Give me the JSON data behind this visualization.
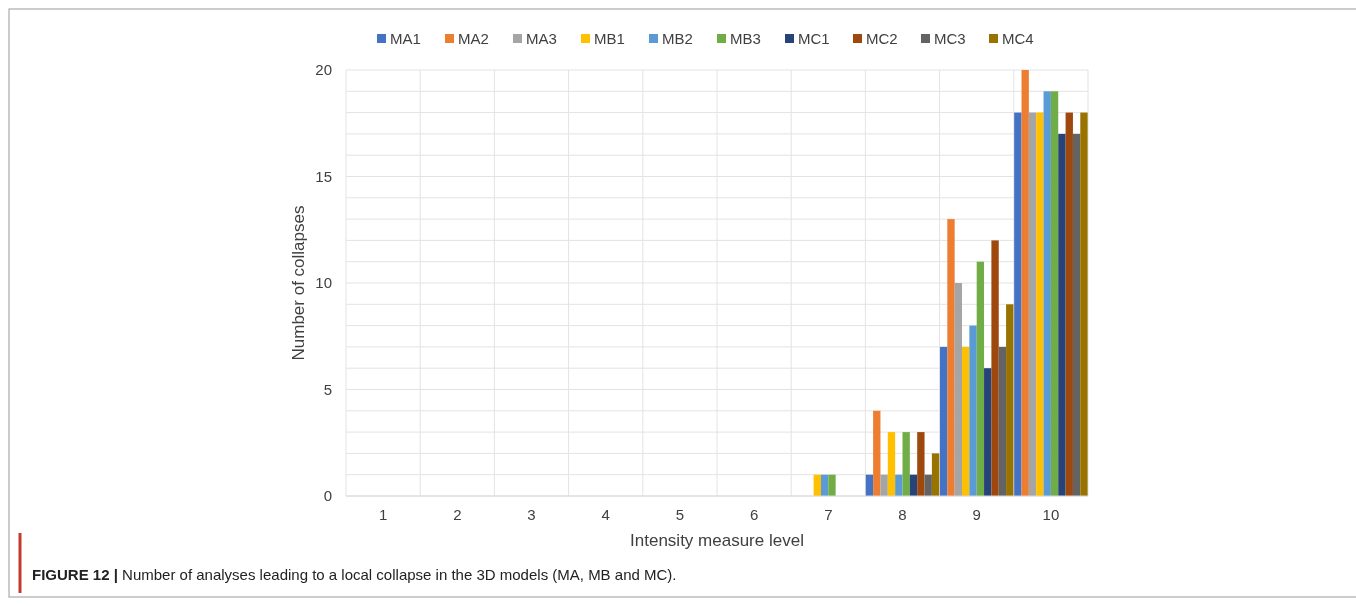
{
  "chart_data": {
    "type": "bar",
    "xlabel": "Intensity measure level",
    "ylabel": "Number of collapses",
    "categories": [
      "1",
      "2",
      "3",
      "4",
      "5",
      "6",
      "7",
      "8",
      "9",
      "10"
    ],
    "series": [
      {
        "name": "MA1",
        "color": "#4472c4",
        "values": [
          0,
          0,
          0,
          0,
          0,
          0,
          0,
          1,
          7,
          18
        ]
      },
      {
        "name": "MA2",
        "color": "#ed7d31",
        "values": [
          0,
          0,
          0,
          0,
          0,
          0,
          0,
          4,
          13,
          20
        ]
      },
      {
        "name": "MA3",
        "color": "#a5a5a5",
        "values": [
          0,
          0,
          0,
          0,
          0,
          0,
          0,
          1,
          10,
          18
        ]
      },
      {
        "name": "MB1",
        "color": "#ffc000",
        "values": [
          0,
          0,
          0,
          0,
          0,
          0,
          1,
          3,
          7,
          18
        ]
      },
      {
        "name": "MB2",
        "color": "#5b9bd5",
        "values": [
          0,
          0,
          0,
          0,
          0,
          0,
          1,
          1,
          8,
          19
        ]
      },
      {
        "name": "MB3",
        "color": "#70ad47",
        "values": [
          0,
          0,
          0,
          0,
          0,
          0,
          1,
          3,
          11,
          19
        ]
      },
      {
        "name": "MC1",
        "color": "#264478",
        "values": [
          0,
          0,
          0,
          0,
          0,
          0,
          0,
          1,
          6,
          17
        ]
      },
      {
        "name": "MC2",
        "color": "#9e480e",
        "values": [
          0,
          0,
          0,
          0,
          0,
          0,
          0,
          3,
          12,
          18
        ]
      },
      {
        "name": "MC3",
        "color": "#636363",
        "values": [
          0,
          0,
          0,
          0,
          0,
          0,
          0,
          1,
          7,
          17
        ]
      },
      {
        "name": "MC4",
        "color": "#997300",
        "values": [
          0,
          0,
          0,
          0,
          0,
          0,
          0,
          2,
          9,
          18
        ]
      }
    ],
    "ylim": [
      0,
      20
    ],
    "yticks": [
      0,
      {
        "value": 1,
        "label": null
      },
      {
        "value": 2,
        "label": null
      },
      {
        "value": 3,
        "label": null
      },
      {
        "value": 4,
        "label": null
      },
      5,
      {
        "value": 6,
        "label": null
      },
      {
        "value": 7,
        "label": null
      },
      {
        "value": 8,
        "label": null
      },
      {
        "value": 9,
        "label": null
      },
      10,
      {
        "value": 11,
        "label": null
      },
      {
        "value": 12,
        "label": null
      },
      {
        "value": 13,
        "label": null
      },
      {
        "value": 14,
        "label": null
      },
      15,
      {
        "value": 16,
        "label": null
      },
      {
        "value": 17,
        "label": null
      },
      {
        "value": 18,
        "label": null
      },
      {
        "value": 19,
        "label": null
      },
      20
    ],
    "grid": true,
    "legend": "top",
    "annotations": [
      "FIGURE 12 | Number of analyses leading to a local collapse in the 3D models (MA, MB and MC)."
    ]
  }
}
